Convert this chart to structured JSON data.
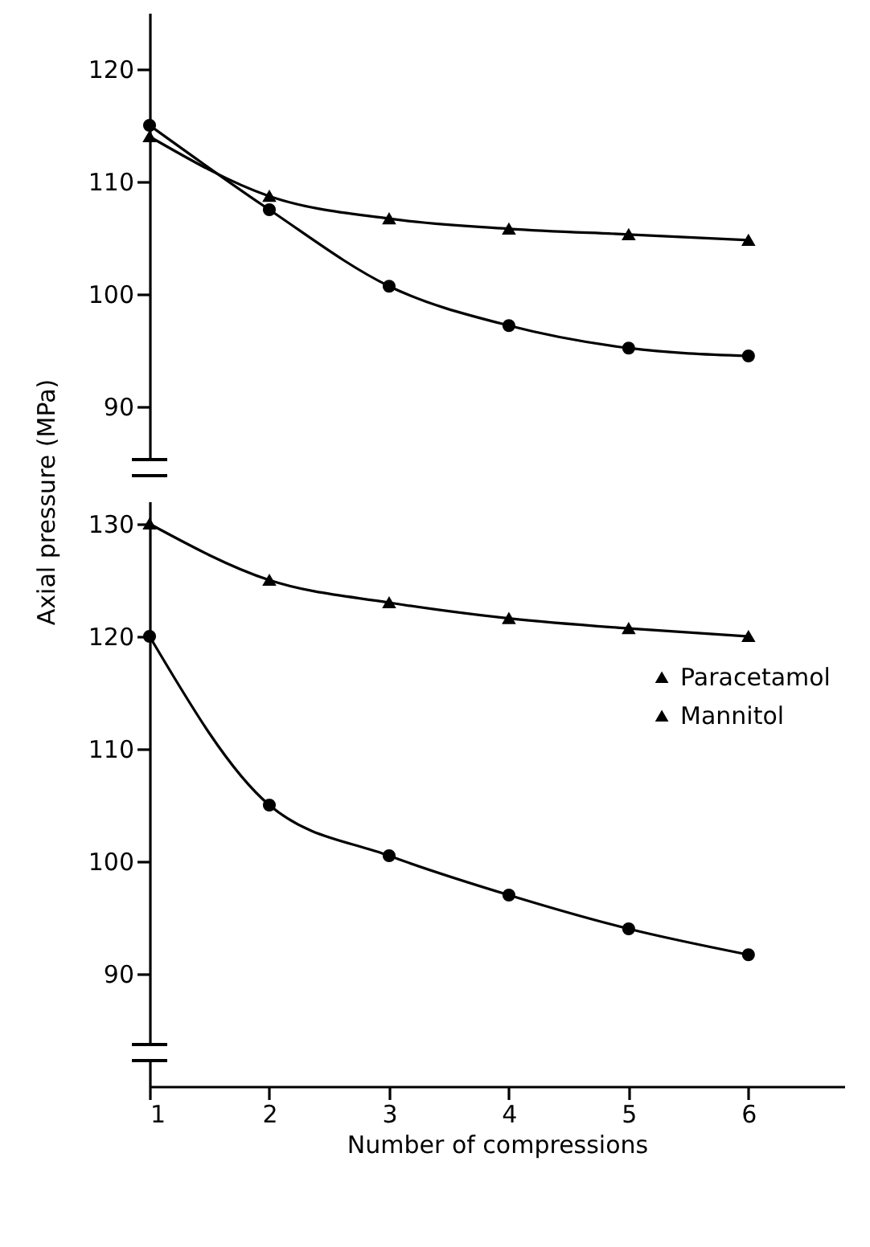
{
  "chart_data": [
    {
      "type": "line",
      "x": [
        1,
        2,
        3,
        4,
        5,
        6
      ],
      "ylim": [
        85,
        125
      ],
      "yticks": [
        90,
        100,
        110,
        120
      ],
      "tick_labels": "y",
      "legend": false,
      "grid": false,
      "series": [
        {
          "color": "#000000",
          "marker": "circle",
          "values": [
            115,
            107.5,
            100.7,
            97.2,
            95.2,
            94.5
          ]
        },
        {
          "name": "Paracetamol",
          "color": "#000000",
          "marker": "triangle",
          "values": [
            114,
            108.7,
            106.7,
            105.8,
            105.3,
            104.8
          ]
        }
      ]
    },
    {
      "type": "line",
      "x": [
        1,
        2,
        3,
        4,
        5,
        6
      ],
      "xlim": [
        1,
        6.8
      ],
      "xticks": [
        1,
        2,
        3,
        4,
        5,
        6
      ],
      "ylim": [
        80,
        132
      ],
      "yticks": [
        90,
        100,
        110,
        120,
        130
      ],
      "xlabel": "Number of compressions",
      "ylabel": "Axial pressure  (MPa)",
      "legend": "right",
      "grid": false,
      "series": [
        {
          "color": "#000000",
          "marker": "circle",
          "values": [
            120,
            105,
            100.5,
            97,
            94,
            91.7
          ]
        },
        {
          "name": "Mannitol",
          "color": "#000000",
          "marker": "triangle",
          "values": [
            130,
            125,
            123,
            121.6,
            120.7,
            120
          ]
        }
      ]
    }
  ]
}
